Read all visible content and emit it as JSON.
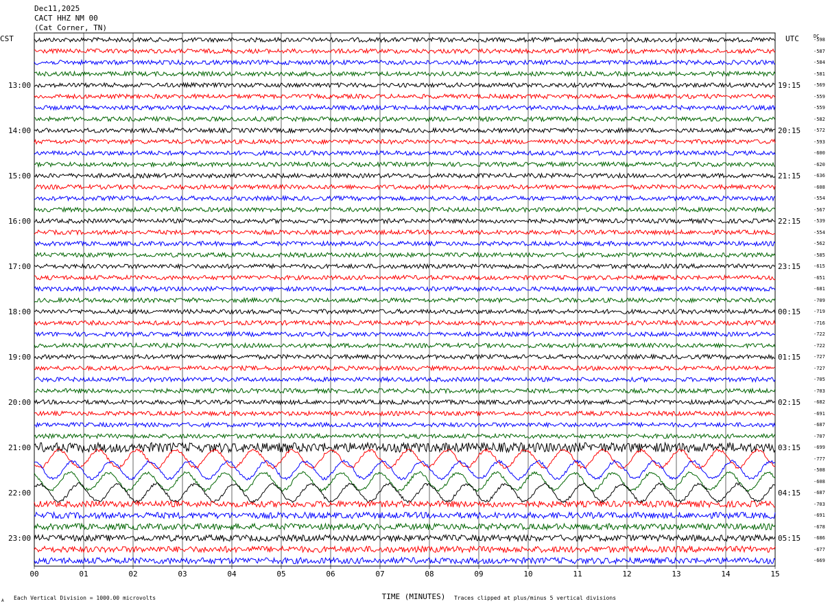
{
  "header": {
    "date": "Dec11,2025",
    "station": "CACT HHZ NM 00",
    "location": "(Cat Corner, TN)"
  },
  "left_zone": "CST",
  "right_zone": "UTC",
  "dc_header": "DC",
  "footer": {
    "left": "Each Vertical Division = 1000.00 microvolts",
    "right": "Traces clipped at plus/minus 5 vertical divisions",
    "corner": "A"
  },
  "colors": {
    "black": "#000000",
    "red": "#ff0000",
    "blue": "#0000ff",
    "green": "#006400",
    "grid": "#000000"
  },
  "chart_data": {
    "type": "line",
    "title": "CACT HHZ NM 00 (Cat Corner, TN) Dec11,2025",
    "xlabel": "TIME (MINUTES)",
    "ylabel": "",
    "xlim": [
      0,
      15
    ],
    "x_ticks": [
      "00",
      "01",
      "02",
      "03",
      "04",
      "05",
      "06",
      "07",
      "08",
      "09",
      "10",
      "11",
      "12",
      "13",
      "14",
      "15"
    ],
    "trace_color_cycle": [
      "black",
      "red",
      "blue",
      "green"
    ],
    "left_hour_labels": [
      {
        "row": 4,
        "label": "13:00"
      },
      {
        "row": 8,
        "label": "14:00"
      },
      {
        "row": 12,
        "label": "15:00"
      },
      {
        "row": 16,
        "label": "16:00"
      },
      {
        "row": 20,
        "label": "17:00"
      },
      {
        "row": 24,
        "label": "18:00"
      },
      {
        "row": 28,
        "label": "19:00"
      },
      {
        "row": 32,
        "label": "20:00"
      },
      {
        "row": 36,
        "label": "21:00"
      },
      {
        "row": 40,
        "label": "22:00"
      },
      {
        "row": 44,
        "label": "23:00"
      }
    ],
    "right_hour_labels": [
      {
        "row": 4,
        "label": "19:15"
      },
      {
        "row": 8,
        "label": "20:15"
      },
      {
        "row": 12,
        "label": "21:15"
      },
      {
        "row": 16,
        "label": "22:15"
      },
      {
        "row": 20,
        "label": "23:15"
      },
      {
        "row": 24,
        "label": "00:15"
      },
      {
        "row": 28,
        "label": "01:15"
      },
      {
        "row": 32,
        "label": "02:15"
      },
      {
        "row": 36,
        "label": "03:15"
      },
      {
        "row": 40,
        "label": "04:15"
      },
      {
        "row": 44,
        "label": "05:15"
      }
    ],
    "dc_offsets": [
      "-598",
      "-587",
      "-584",
      "-581",
      "-569",
      "-559",
      "-559",
      "-582",
      "-572",
      "-593",
      "-600",
      "-620",
      "-636",
      "-608",
      "-554",
      "-567",
      "-539",
      "-554",
      "-562",
      "-585",
      "-615",
      "-651",
      "-681",
      "-709",
      "-719",
      "-716",
      "-722",
      "-722",
      "-727",
      "-727",
      "-705",
      "-703",
      "-682",
      "-691",
      "-687",
      "-707",
      "-699",
      "-777",
      "-508",
      "-608",
      "-687",
      "-703",
      "-691",
      "-678",
      "-686",
      "-677",
      "-669"
    ]
  }
}
